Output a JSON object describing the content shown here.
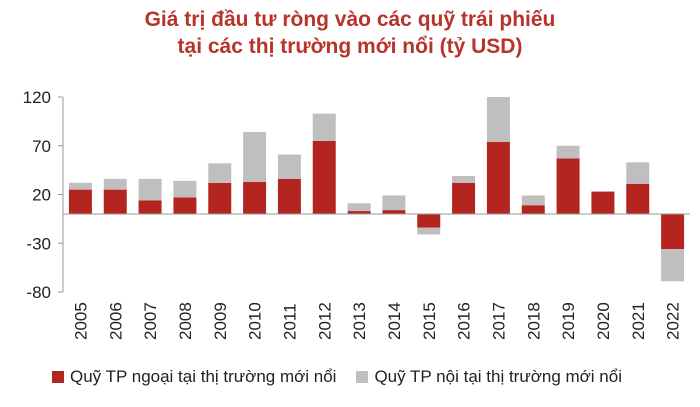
{
  "chart_data": {
    "type": "bar",
    "stacked": true,
    "title": "Giá trị đầu tư ròng vào các quỹ trái phiếu\ntại các thị trường mới nổi (tỷ USD)",
    "categories": [
      "2005",
      "2006",
      "2007",
      "2008",
      "2009",
      "2010",
      "2011",
      "2012",
      "2013",
      "2014",
      "2015",
      "2016",
      "2017",
      "2018",
      "2019",
      "2020",
      "2021",
      "2022"
    ],
    "series": [
      {
        "name": "Quỹ TP ngoại tại thị trường mới nổi",
        "color": "#b52520",
        "values": [
          25,
          25,
          14,
          17,
          32,
          33,
          36,
          75,
          3,
          4,
          -14,
          32,
          74,
          9,
          57,
          23,
          31,
          -36
        ]
      },
      {
        "name": "Quỹ TP nội tại thị trường mới nổi",
        "color": "#bfbfbf",
        "values": [
          7,
          11,
          22,
          17,
          20,
          51,
          25,
          28,
          8,
          15,
          -7,
          7,
          46,
          10,
          13,
          0,
          22,
          -33
        ]
      }
    ],
    "yticks": [
      120,
      70,
      20,
      -30,
      -80
    ],
    "ylim": [
      -80,
      120
    ],
    "xlabel": "",
    "ylabel": "",
    "legend": "bottom",
    "grid": false
  }
}
